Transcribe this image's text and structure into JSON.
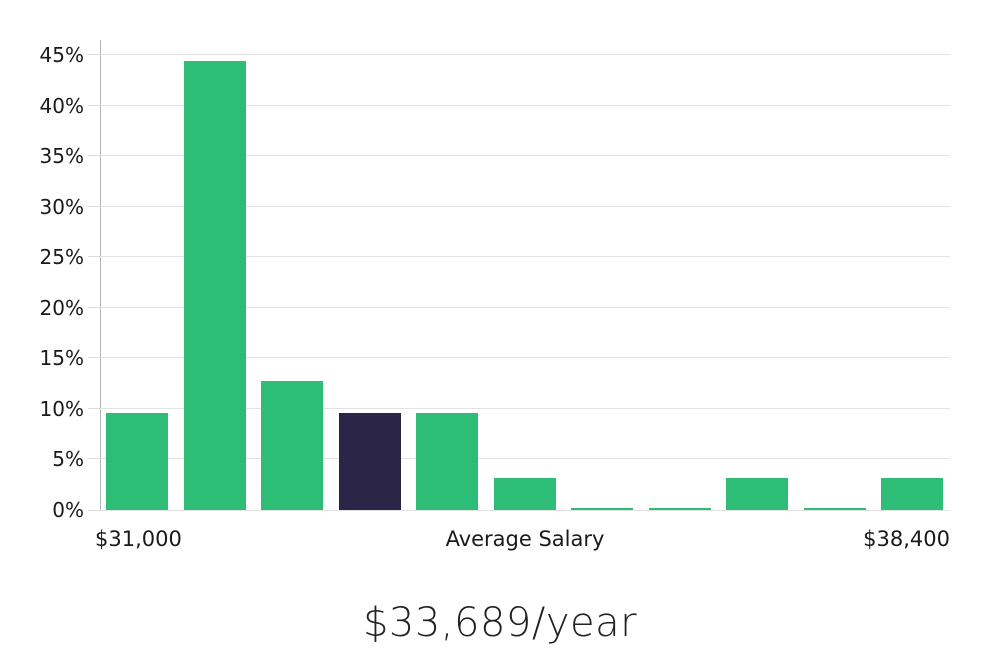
{
  "chart_data": {
    "type": "bar",
    "title": "$33,689/year",
    "values": [
      9.6,
      44.4,
      12.8,
      9.6,
      9.6,
      3.2,
      0.2,
      0.2,
      3.2,
      0.2,
      3.2
    ],
    "highlight_index": 3,
    "yticks": [
      {
        "value": 0,
        "label": "0%"
      },
      {
        "value": 5,
        "label": "5%"
      },
      {
        "value": 10,
        "label": "10%"
      },
      {
        "value": 15,
        "label": "15%"
      },
      {
        "value": 20,
        "label": "20%"
      },
      {
        "value": 25,
        "label": "25%"
      },
      {
        "value": 30,
        "label": "30%"
      },
      {
        "value": 35,
        "label": "35%"
      },
      {
        "value": 40,
        "label": "40%"
      },
      {
        "value": 45,
        "label": "45%"
      }
    ],
    "ylim": [
      0,
      46.5
    ],
    "grid": true,
    "legend": false,
    "xlabels": [
      {
        "text": "$31,000",
        "align": "left"
      },
      {
        "text": "Average Salary",
        "align": "center"
      },
      {
        "text": "$38,400",
        "align": "right"
      }
    ]
  },
  "colors": {
    "bar": "#2ebd76",
    "bar_highlight": "#2a2547",
    "gridline": "#e2e2e2",
    "axis_line": "#b3b3b3",
    "label_text": "#1a1a1a",
    "title_text": "#222222"
  }
}
